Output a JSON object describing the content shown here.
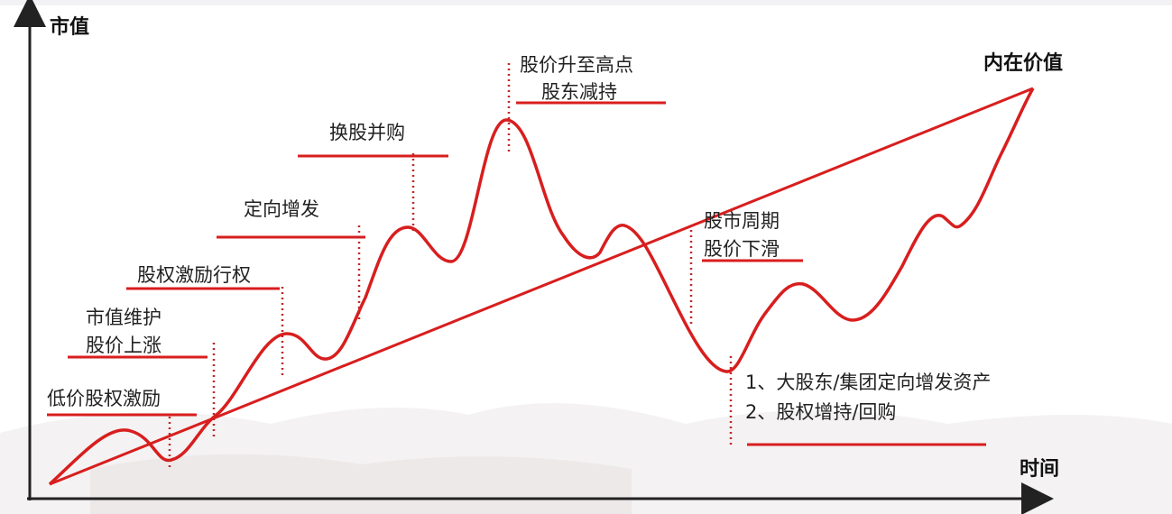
{
  "axes": {
    "y_label": "市值",
    "x_label": "时间",
    "line_label": "内在价值"
  },
  "colors": {
    "curve": "#d81e1e",
    "axis": "#222222"
  },
  "events": [
    {
      "lines": [
        "低价股权激励"
      ]
    },
    {
      "lines": [
        "市值维护",
        "股价上涨"
      ]
    },
    {
      "lines": [
        "股权激励行权"
      ]
    },
    {
      "lines": [
        "定向增发"
      ]
    },
    {
      "lines": [
        "换股并购"
      ]
    },
    {
      "lines": [
        "股价升至高点",
        "股东减持"
      ]
    },
    {
      "lines": [
        "股市周期",
        "股价下滑"
      ]
    },
    {
      "lines": [
        "1、大股东/集团定向增发资产",
        "2、股权增持/回购"
      ]
    }
  ]
}
